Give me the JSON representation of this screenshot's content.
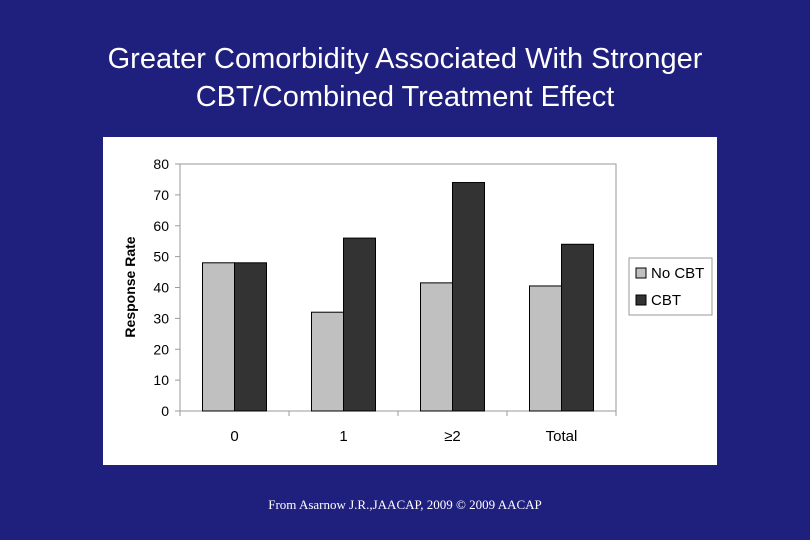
{
  "slide": {
    "title_line1": "Greater Comorbidity Associated With Stronger",
    "title_line2": "CBT/Combined Treatment Effect",
    "source": "From Asarnow J.R.,JAACAP, 2009 © 2009 AACAP"
  },
  "chart_data": {
    "type": "bar",
    "title": "",
    "xlabel": "",
    "ylabel": "Response Rate",
    "ylim": [
      0,
      80
    ],
    "yticks": [
      0,
      10,
      20,
      30,
      40,
      50,
      60,
      70,
      80
    ],
    "categories": [
      "0",
      "1",
      "≥2",
      "Total"
    ],
    "series": [
      {
        "name": "No CBT",
        "values": [
          48,
          32,
          41.5,
          40.5
        ],
        "color": "#c0c0c0"
      },
      {
        "name": "CBT",
        "values": [
          48,
          56,
          74,
          54
        ],
        "color": "#333333"
      }
    ],
    "grid": false,
    "legend": "right"
  }
}
